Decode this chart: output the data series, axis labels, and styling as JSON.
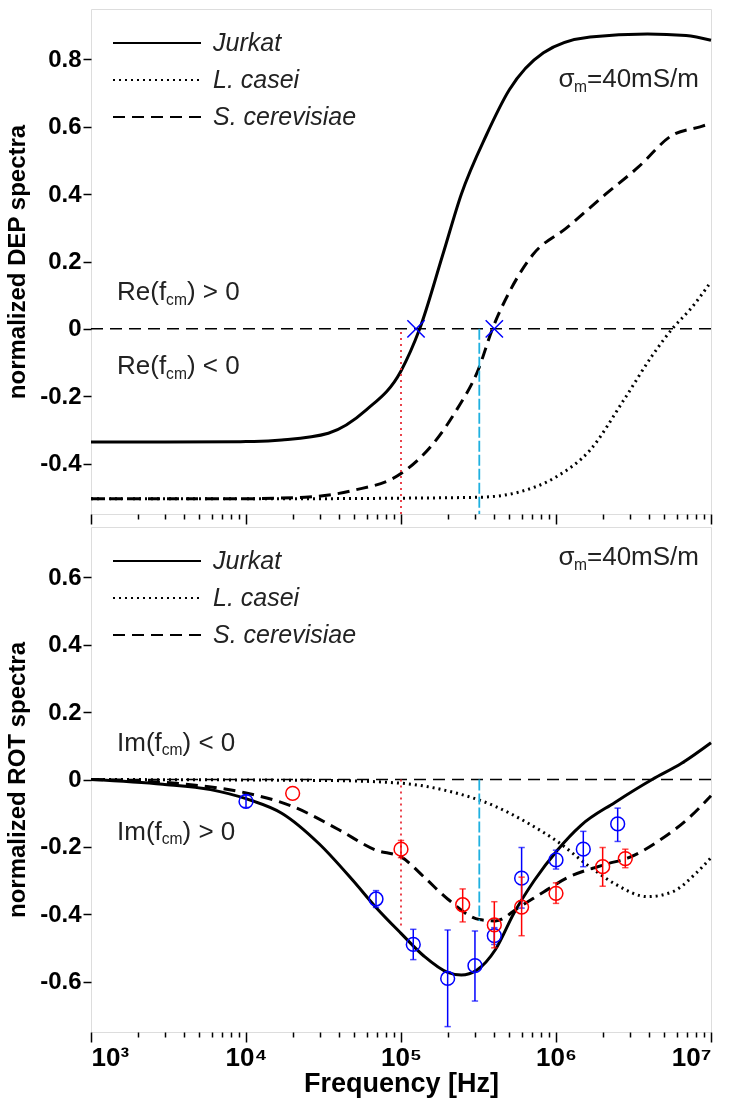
{
  "chart_data": [
    {
      "type": "line",
      "ylabel": "normalized DEP spectra",
      "log": "x",
      "grid": false,
      "legend": "top left",
      "tick_labels": "y",
      "xlim": [
        1000,
        10000000
      ],
      "xticks": [
        {
          "value": 1000,
          "label": null
        },
        {
          "value": 2000,
          "label": null
        },
        {
          "value": 3000,
          "label": null
        },
        {
          "value": 4000,
          "label": null
        },
        {
          "value": 5000,
          "label": null
        },
        {
          "value": 6000,
          "label": null
        },
        {
          "value": 7000,
          "label": null
        },
        {
          "value": 8000,
          "label": null
        },
        {
          "value": 9000,
          "label": null
        },
        {
          "value": 10000,
          "label": null
        },
        {
          "value": 20000,
          "label": null
        },
        {
          "value": 30000,
          "label": null
        },
        {
          "value": 40000,
          "label": null
        },
        {
          "value": 50000,
          "label": null
        },
        {
          "value": 60000,
          "label": null
        },
        {
          "value": 70000,
          "label": null
        },
        {
          "value": 80000,
          "label": null
        },
        {
          "value": 90000,
          "label": null
        },
        {
          "value": 100000,
          "label": null
        },
        {
          "value": 200000,
          "label": null
        },
        {
          "value": 300000,
          "label": null
        },
        {
          "value": 400000,
          "label": null
        },
        {
          "value": 500000,
          "label": null
        },
        {
          "value": 600000,
          "label": null
        },
        {
          "value": 700000,
          "label": null
        },
        {
          "value": 800000,
          "label": null
        },
        {
          "value": 900000,
          "label": null
        },
        {
          "value": 1000000,
          "label": null
        },
        {
          "value": 2000000,
          "label": null
        },
        {
          "value": 3000000,
          "label": null
        },
        {
          "value": 4000000,
          "label": null
        },
        {
          "value": 5000000,
          "label": null
        },
        {
          "value": 6000000,
          "label": null
        },
        {
          "value": 7000000,
          "label": null
        },
        {
          "value": 8000000,
          "label": null
        },
        {
          "value": 9000000,
          "label": null
        },
        {
          "value": 10000000,
          "label": null
        }
      ],
      "ylim": [
        -0.55,
        0.95
      ],
      "yticks": [
        -0.4,
        -0.2,
        0,
        0.2,
        0.4,
        0.6,
        0.8
      ],
      "ref_lines": [
        {
          "axis": "y",
          "value": 0,
          "color": "#000000",
          "line_style": "dashed"
        }
      ],
      "annotations": [
        "Re(f$_{cm}$) > 0",
        "Re(f$_{cm}$) < 0",
        "σ$_{m}$=40mS/m"
      ],
      "series": [
        {
          "name": "Jurkat",
          "type": "line",
          "line_style": "solid",
          "color": "#000000",
          "x": [
            1000,
            3000,
            10000,
            17000,
            34000,
            60000,
            100000,
            132000,
            186000,
            245000,
            355000,
            500000,
            830000,
            1660000,
            3890000,
            6900000,
            10000000
          ],
          "values": [
            -0.336,
            -0.336,
            -0.335,
            -0.33,
            -0.31,
            -0.24,
            -0.125,
            0,
            0.22,
            0.4,
            0.575,
            0.71,
            0.82,
            0.867,
            0.876,
            0.871,
            0.857
          ]
        },
        {
          "name": "L. casei",
          "type": "line",
          "line_style": "dotted",
          "color": "#000000",
          "x": [
            1000,
            10000,
            100000,
            331000,
            575000,
            1000000,
            1660000,
            2750000,
            4170000,
            5620000,
            7410000,
            10000000
          ],
          "values": [
            -0.505,
            -0.505,
            -0.503,
            -0.5,
            -0.485,
            -0.44,
            -0.36,
            -0.21,
            -0.08,
            0,
            0.06,
            0.14
          ]
        },
        {
          "name": "S. cerevisiae",
          "type": "line",
          "line_style": "dashed",
          "color": "#000000",
          "x": [
            1000,
            8300,
            24000,
            49000,
            100000,
            162000,
            229000,
            316000,
            389000,
            501000,
            708000,
            1170000,
            2090000,
            3390000,
            5620000,
            8500000,
            10000000
          ],
          "values": [
            -0.505,
            -0.505,
            -0.5,
            -0.48,
            -0.43,
            -0.34,
            -0.24,
            -0.12,
            0,
            0.11,
            0.22,
            0.3,
            0.4,
            0.48,
            0.575,
            0.6,
            0.61
          ]
        },
        {
          "type": "line",
          "line_style": "dotted",
          "color": "#e8303a",
          "x": [
            100000,
            100000
          ],
          "values": [
            -0.55,
            0
          ]
        },
        {
          "type": "line",
          "line_style": "dashed",
          "color": "#1fb0e0",
          "x": [
            320000,
            320000
          ],
          "values": [
            0,
            -0.55
          ]
        },
        {
          "type": "scatter",
          "marker": "cross",
          "color": "#0000ff",
          "x": [
            125000,
            400000
          ],
          "values": [
            0,
            0
          ]
        }
      ]
    },
    {
      "type": "line",
      "ylabel": "normalized ROT spectra",
      "xlabel": "Frequency [Hz]",
      "log": "x",
      "grid": false,
      "legend": "top left",
      "xlim": [
        1000,
        10000000
      ],
      "xticks": [
        {
          "value": 1000,
          "label": "10³"
        },
        {
          "value": 2000,
          "label": null
        },
        {
          "value": 3000,
          "label": null
        },
        {
          "value": 4000,
          "label": null
        },
        {
          "value": 5000,
          "label": null
        },
        {
          "value": 6000,
          "label": null
        },
        {
          "value": 7000,
          "label": null
        },
        {
          "value": 8000,
          "label": null
        },
        {
          "value": 9000,
          "label": null
        },
        {
          "value": 10000,
          "label": "10⁴"
        },
        {
          "value": 20000,
          "label": null
        },
        {
          "value": 30000,
          "label": null
        },
        {
          "value": 40000,
          "label": null
        },
        {
          "value": 50000,
          "label": null
        },
        {
          "value": 60000,
          "label": null
        },
        {
          "value": 70000,
          "label": null
        },
        {
          "value": 80000,
          "label": null
        },
        {
          "value": 90000,
          "label": null
        },
        {
          "value": 100000,
          "label": "10⁵"
        },
        {
          "value": 200000,
          "label": null
        },
        {
          "value": 300000,
          "label": null
        },
        {
          "value": 400000,
          "label": null
        },
        {
          "value": 500000,
          "label": null
        },
        {
          "value": 600000,
          "label": null
        },
        {
          "value": 700000,
          "label": null
        },
        {
          "value": 800000,
          "label": null
        },
        {
          "value": 900000,
          "label": null
        },
        {
          "value": 1000000,
          "label": "10⁶"
        },
        {
          "value": 2000000,
          "label": null
        },
        {
          "value": 3000000,
          "label": null
        },
        {
          "value": 4000000,
          "label": null
        },
        {
          "value": 5000000,
          "label": null
        },
        {
          "value": 6000000,
          "label": null
        },
        {
          "value": 7000000,
          "label": null
        },
        {
          "value": 8000000,
          "label": null
        },
        {
          "value": 9000000,
          "label": null
        },
        {
          "value": 10000000,
          "label": "10⁷"
        }
      ],
      "ylim": [
        -0.75,
        0.75
      ],
      "yticks": [
        -0.6,
        -0.4,
        -0.2,
        0,
        0.2,
        0.4,
        0.6
      ],
      "ref_lines": [
        {
          "axis": "y",
          "value": 0,
          "color": "#000000",
          "line_style": "dashed"
        }
      ],
      "annotations": [
        "Im(f$_{cm}$) < 0",
        "Im(f$_{cm}$) > 0",
        "σ$_{m}$=40mS/m"
      ],
      "series": [
        {
          "name": "Jurkat",
          "type": "line",
          "line_style": "solid",
          "color": "#000000",
          "x": [
            1000,
            2900,
            5900,
            10000,
            17000,
            29500,
            49000,
            69000,
            100000,
            141000,
            200000,
            245000,
            309000,
            407000,
            537000,
            724000,
            1020000,
            1450000,
            2400000,
            4170000,
            6460000,
            10000000
          ],
          "values": [
            0,
            -0.014,
            -0.03,
            -0.057,
            -0.1,
            -0.19,
            -0.3,
            -0.38,
            -0.457,
            -0.525,
            -0.573,
            -0.581,
            -0.566,
            -0.505,
            -0.396,
            -0.3,
            -0.21,
            -0.136,
            -0.068,
            0,
            0.048,
            0.109
          ]
        },
        {
          "name": "L. casei",
          "type": "line",
          "line_style": "dotted",
          "color": "#000000",
          "x": [
            1000,
            34000,
            100000,
            200000,
            407000,
            661000,
            1020000,
            1660000,
            2400000,
            3890000,
            5620000,
            7940000,
            10000000
          ],
          "values": [
            0,
            -0.003,
            -0.011,
            -0.034,
            -0.08,
            -0.13,
            -0.184,
            -0.26,
            -0.31,
            -0.348,
            -0.334,
            -0.28,
            -0.232
          ]
        },
        {
          "name": "S. cerevisiae",
          "type": "line",
          "line_style": "dashed",
          "color": "#000000",
          "x": [
            1000,
            4100,
            10000,
            20000,
            40000,
            69000,
            100000,
            141000,
            200000,
            320000,
            407000,
            575000,
            832000,
            1170000,
            2090000,
            2950000,
            4790000,
            7410000,
            10000000
          ],
          "values": [
            0,
            -0.014,
            -0.04,
            -0.08,
            -0.15,
            -0.21,
            -0.23,
            -0.29,
            -0.355,
            -0.416,
            -0.42,
            -0.38,
            -0.334,
            -0.293,
            -0.252,
            -0.232,
            -0.177,
            -0.109,
            -0.048
          ]
        },
        {
          "type": "line",
          "line_style": "dotted",
          "color": "#e8303a",
          "x": [
            100000,
            100000
          ],
          "values": [
            0,
            -0.44
          ]
        },
        {
          "type": "line",
          "line_style": "dashed",
          "color": "#1fb0e0",
          "x": [
            320000,
            320000
          ],
          "values": [
            0,
            -0.42
          ]
        },
        {
          "type": "scatter",
          "marker": "circle",
          "color": "#0000ff",
          "x": [
            10000,
            69000,
            120000,
            200000,
            300000,
            400000,
            600000,
            1000000,
            1500000,
            2500000
          ],
          "values": [
            -0.065,
            -0.355,
            -0.49,
            -0.591,
            -0.553,
            -0.464,
            -0.293,
            -0.239,
            -0.207,
            -0.132
          ],
          "errors": [
            0.018,
            0.025,
            0.045,
            [
              -0.734,
              -0.447
            ],
            [
              -0.658,
              -0.45
            ],
            [
              -0.49,
              -0.44
            ],
            [
              -0.382,
              -0.202
            ],
            [
              -0.266,
              -0.21
            ],
            [
              -0.259,
              -0.154
            ],
            [
              -0.184,
              -0.085
            ]
          ]
        },
        {
          "type": "scatter",
          "marker": "circle",
          "color": "#ff0000",
          "x": [
            20000,
            100000,
            250000,
            400000,
            600000,
            1000000,
            2000000,
            2800000
          ],
          "values": [
            -0.041,
            -0.207,
            -0.372,
            -0.432,
            -0.379,
            -0.338,
            -0.259,
            -0.235
          ],
          "errors": [
            null,
            [
              -0.232,
              -0.181
            ],
            [
              -0.423,
              -0.325
            ],
            [
              -0.5,
              -0.363
            ],
            [
              -0.464,
              -0.29
            ],
            [
              -0.368,
              -0.307
            ],
            [
              -0.317,
              -0.202
            ],
            [
              -0.262,
              -0.207
            ]
          ]
        }
      ]
    }
  ]
}
